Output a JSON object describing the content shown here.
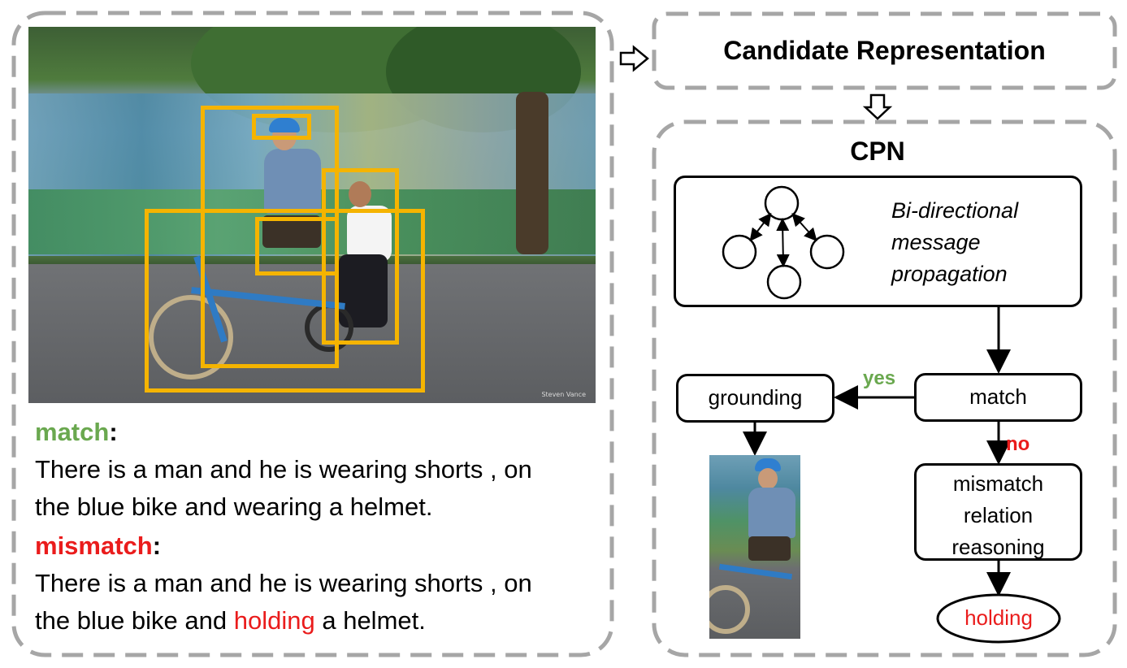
{
  "left_panel": {
    "match_label": "match",
    "match_colon": ":",
    "match_line1": "There is a man and he is wearing shorts , on",
    "match_line2": "the blue bike and wearing a helmet.",
    "mismatch_label": "mismatch",
    "mismatch_colon": ":",
    "mismatch_line1": "There is a man and he is wearing shorts , on",
    "mismatch_line2_pre": "the blue bike and ",
    "mismatch_line2_red": "holding",
    "mismatch_line2_post": " a helmet.",
    "photo_watermark": "Steven Vance"
  },
  "right_panel": {
    "candidate_title": "Candidate Representation",
    "cpn_title": "CPN",
    "propagation_line1": "Bi-directional",
    "propagation_line2": "message",
    "propagation_line3": "propagation",
    "grounding_label": "grounding",
    "match_label": "match",
    "yes_label": "yes",
    "no_label": "no",
    "mismatch_line1": "mismatch",
    "mismatch_line2": "relation",
    "mismatch_line3": "reasoning",
    "result_label": "holding"
  },
  "colors": {
    "green": "#6aa84f",
    "red": "#ea1c1c",
    "bbox": "#f5b400",
    "dashed_border": "#a6a6a6"
  }
}
